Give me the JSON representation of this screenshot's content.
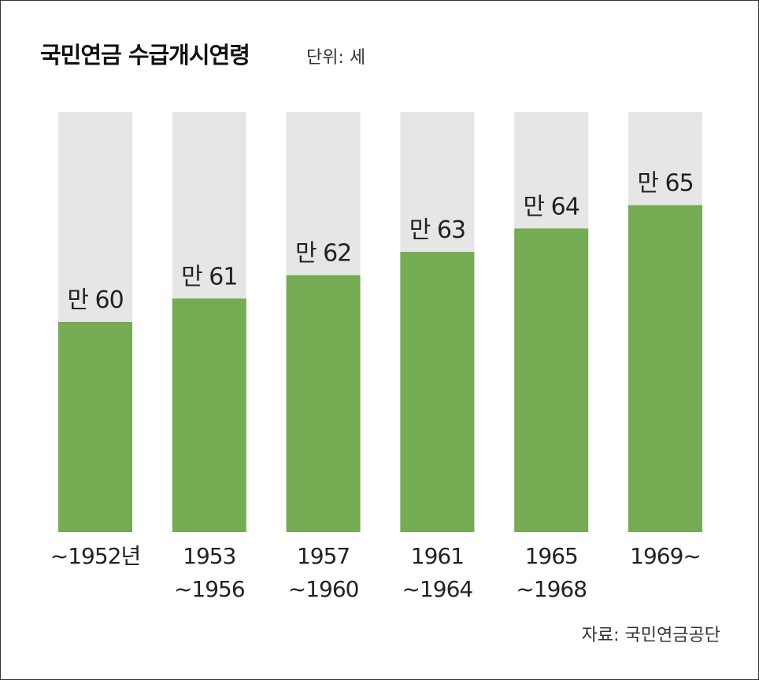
{
  "title": "국민연금 수급개시연령",
  "unit": "단위: 세",
  "source": "자료: 국민연금공단",
  "colors": {
    "fill": "#74ab53",
    "track": "#e6e6e6"
  },
  "chart_data": {
    "type": "bar",
    "categories": [
      [
        "~1952년"
      ],
      [
        "1953",
        "~1956"
      ],
      [
        "1957",
        "~1960"
      ],
      [
        "1961",
        "~1964"
      ],
      [
        "1965",
        "~1968"
      ],
      [
        "1969~"
      ]
    ],
    "values": [
      60,
      61,
      62,
      63,
      64,
      65
    ],
    "data_labels": [
      "만 60",
      "만 61",
      "만 62",
      "만 63",
      "만 64",
      "만 65"
    ],
    "ylim": [
      51,
      69
    ],
    "grid": false,
    "legend": "none"
  }
}
